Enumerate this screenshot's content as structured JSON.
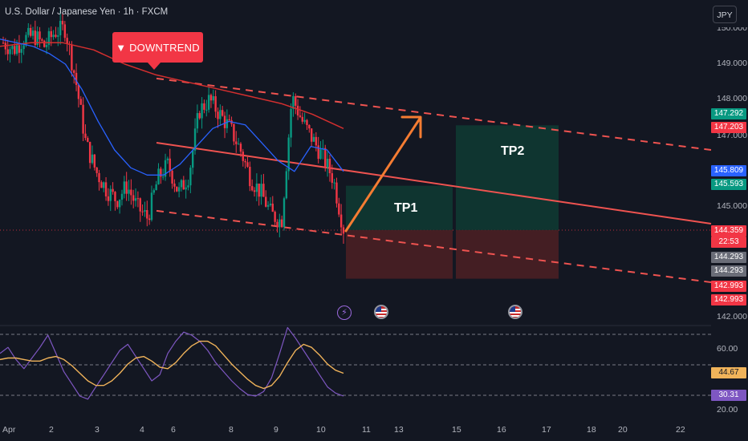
{
  "header": {
    "title": "U.S. Dollar / Japanese Yen · 1h · FXCM",
    "currency_button": "JPY"
  },
  "annotations": {
    "trend_badge": "▼ DOWNTREND",
    "tp1": "TP1",
    "tp2": "TP2"
  },
  "colors": {
    "background": "#131722",
    "bull": "#089981",
    "bear": "#f23645",
    "trendline": "#ef5350",
    "ma_blue": "#2962ff",
    "ma_red": "#d32f2f",
    "arrow": "#f57c32",
    "rsi": "#7e57c2",
    "rsi_ma": "#f0b35a"
  },
  "chart_data": [
    {
      "type": "line",
      "title": "",
      "price_axis": {
        "ticks": [
          "149.000",
          "148.000",
          "147.000",
          "145.000",
          "142.000"
        ],
        "partial_top_tick": "150.000",
        "ylim": [
          141.8,
          150.2
        ]
      },
      "time_axis": {
        "ticks": [
          "Apr",
          "2",
          "3",
          "4",
          "6",
          "8",
          "9",
          "10",
          "11",
          "13",
          "15",
          "16",
          "17",
          "18",
          "20",
          "22"
        ]
      },
      "price_tags": [
        {
          "text": "147.292",
          "color": "#089981"
        },
        {
          "text": "147.203",
          "color": "#f23645"
        },
        {
          "text": "145.809",
          "color": "#2962ff"
        },
        {
          "text": "145.593",
          "color": "#089981"
        },
        {
          "text": "144.359",
          "color": "#f23645"
        },
        {
          "text": "22:53",
          "color": "#f23645"
        },
        {
          "text": "144.293",
          "color": "#6a6d78"
        },
        {
          "text": "144.293",
          "color": "#6a6d78"
        },
        {
          "text": "142.993",
          "color": "#f23645"
        },
        {
          "text": "142.993",
          "color": "#f23645"
        }
      ],
      "last_price": 144.359,
      "approx_close_path": [
        149.6,
        149.4,
        149.7,
        149.8,
        149.5,
        149.9,
        150.0,
        148.6,
        146.8,
        146.0,
        145.5,
        145.2,
        145.6,
        145.0,
        144.7,
        145.8,
        146.2,
        145.4,
        145.9,
        147.7,
        148.0,
        147.6,
        147.2,
        146.6,
        145.8,
        145.4,
        144.8,
        144.6,
        148.1,
        147.4,
        146.9,
        146.4,
        145.8,
        144.4
      ],
      "ma_blue": [
        149.7,
        149.6,
        149.5,
        149.3,
        149.0,
        148.3,
        147.4,
        146.6,
        146.1,
        145.9,
        145.9,
        146.2,
        146.7,
        147.2,
        147.4,
        147.3,
        146.8,
        146.3,
        146.0,
        146.7,
        146.6,
        146.0
      ],
      "ma_red": [
        149.5,
        149.6,
        149.6,
        149.4,
        149.0,
        148.7,
        148.5,
        148.3,
        148.1,
        147.9,
        147.6,
        147.2
      ],
      "channel": {
        "upper_start": 148.6,
        "upper_end": 146.6,
        "lower_start": 144.9,
        "lower_end": 142.9
      },
      "projection_boxes": {
        "tp1": {
          "top": 145.6,
          "bottom": 144.36
        },
        "tp2": {
          "top": 147.29,
          "bottom": 144.36
        },
        "stop": {
          "top": 144.36,
          "bottom": 143.0
        }
      }
    },
    {
      "type": "line",
      "title": "",
      "rsi_axis": {
        "ticks": [
          "60.00",
          "20.00"
        ],
        "ylim": [
          14,
          86
        ]
      },
      "tags": [
        {
          "text": "44.67",
          "color": "#f0b35a"
        },
        {
          "text": "30.31",
          "color": "#7e57c2"
        }
      ],
      "rsi_series": [
        58,
        62,
        54,
        48,
        55,
        62,
        70,
        58,
        46,
        38,
        30,
        28,
        36,
        44,
        52,
        60,
        64,
        56,
        48,
        40,
        44,
        58,
        66,
        72,
        70,
        66,
        60,
        52,
        46,
        40,
        35,
        31,
        30,
        33,
        42,
        58,
        75,
        68,
        60,
        52,
        44,
        36,
        32,
        30
      ],
      "rsi_ma": [
        54,
        55,
        55,
        54,
        53,
        53,
        55,
        56,
        54,
        50,
        45,
        40,
        37,
        37,
        40,
        45,
        51,
        55,
        56,
        53,
        49,
        48,
        52,
        58,
        63,
        66,
        66,
        63,
        57,
        51,
        46,
        41,
        37,
        35,
        37,
        43,
        52,
        60,
        64,
        62,
        57,
        51,
        47,
        45
      ]
    }
  ]
}
